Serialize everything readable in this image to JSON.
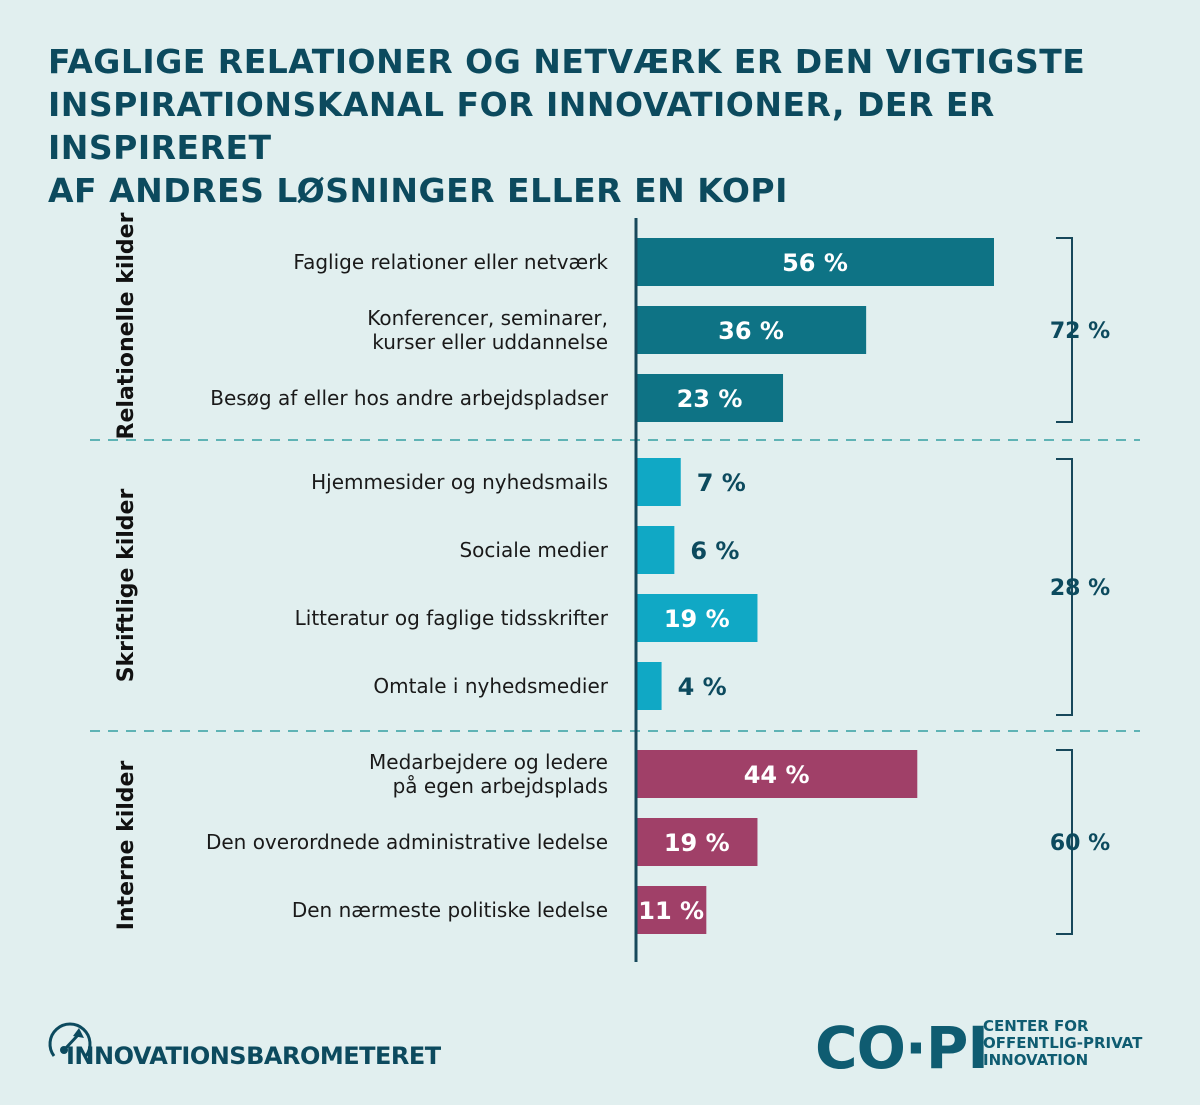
{
  "title": {
    "lines": [
      "FAGLIGE RELATIONER OG NETVÆRK ER DEN VIGTIGSTE",
      "INSPIRATIONSKANAL FOR INNOVATIONER, DER ER INSPIRERET",
      "AF ANDRES LØSNINGER ELLER EN KOPI"
    ]
  },
  "colors": {
    "background": "#e1efef",
    "title": "#0c4a5e",
    "relational": "#0e7385",
    "written": "#10a8c5",
    "internal": "#a04068",
    "axis": "#17485b",
    "divider": "#5fb3b5"
  },
  "chart_data": {
    "type": "bar",
    "orientation": "horizontal",
    "unit": "%",
    "xlim": [
      0,
      56
    ],
    "groups": [
      {
        "name": "Relationelle kilder",
        "total_label": "72 %",
        "color_key": "relational",
        "items": [
          {
            "label": [
              "Faglige relationer eller netværk"
            ],
            "value": 56,
            "value_label": "56 %"
          },
          {
            "label": [
              "Konferencer, seminarer,",
              "kurser eller uddannelse"
            ],
            "value": 36,
            "value_label": "36 %"
          },
          {
            "label": [
              "Besøg af eller hos andre arbejdspladser"
            ],
            "value": 23,
            "value_label": "23 %"
          }
        ]
      },
      {
        "name": "Skriftlige kilder",
        "total_label": "28 %",
        "color_key": "written",
        "items": [
          {
            "label": [
              "Hjemmesider og nyhedsmails"
            ],
            "value": 7,
            "value_label": "7 %"
          },
          {
            "label": [
              "Sociale medier"
            ],
            "value": 6,
            "value_label": "6 %"
          },
          {
            "label": [
              "Litteratur og faglige tidsskrifter"
            ],
            "value": 19,
            "value_label": "19 %"
          },
          {
            "label": [
              "Omtale i nyhedsmedier"
            ],
            "value": 4,
            "value_label": "4 %"
          }
        ]
      },
      {
        "name": "Interne kilder",
        "total_label": "60 %",
        "color_key": "internal",
        "items": [
          {
            "label": [
              "Medarbejdere og ledere",
              "på egen arbejdsplads"
            ],
            "value": 44,
            "value_label": "44 %"
          },
          {
            "label": [
              "Den overordnede administrative ledelse"
            ],
            "value": 19,
            "value_label": "19 %"
          },
          {
            "label": [
              "Den nærmeste politiske ledelse"
            ],
            "value": 11,
            "value_label": "11 %"
          }
        ]
      }
    ]
  },
  "footer": {
    "left_logo": {
      "text": "INNOVATIONSBAROMETERET",
      "icon": "compass-arrow-icon"
    },
    "right_logo": {
      "mark": "CO·PI",
      "tagline": [
        "CENTER FOR",
        "OFFENTLIG-PRIVAT",
        "INNOVATION"
      ]
    }
  }
}
